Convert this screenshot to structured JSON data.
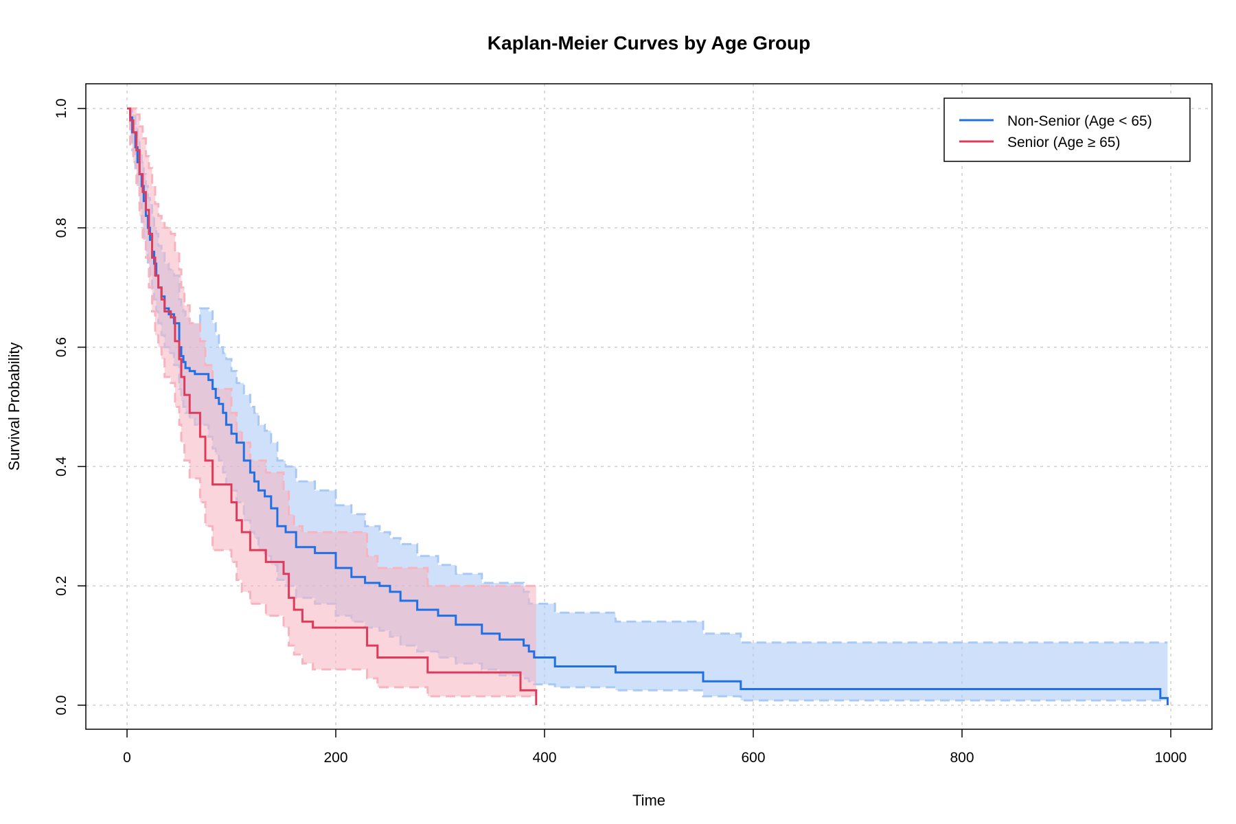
{
  "chart_data": {
    "type": "line",
    "title": "Kaplan-Meier Curves by Age Group",
    "xlabel": "Time",
    "ylabel": "Survival Probability",
    "xlim": [
      0,
      1000
    ],
    "ylim": [
      0,
      1
    ],
    "x_ticks": [
      "0",
      "200",
      "400",
      "600",
      "800",
      "1000"
    ],
    "y_ticks": [
      "0.0",
      "0.2",
      "0.4",
      "0.6",
      "0.8",
      "1.0"
    ],
    "grid": true,
    "legend_position": "top-right",
    "series": [
      {
        "name": "Non-Senior (Age < 65)",
        "color": "#1f6fe5",
        "band_color": "#a8c9f5",
        "x": [
          0,
          3,
          5,
          8,
          10,
          12,
          14,
          16,
          18,
          20,
          22,
          24,
          26,
          28,
          30,
          33,
          36,
          40,
          45,
          50,
          52,
          54,
          56,
          60,
          65,
          70,
          78,
          82,
          85,
          88,
          92,
          95,
          100,
          105,
          112,
          118,
          122,
          126,
          132,
          138,
          144,
          152,
          162,
          180,
          200,
          215,
          228,
          242,
          252,
          262,
          278,
          298,
          315,
          340,
          357,
          380,
          385,
          390,
          410,
          468,
          552,
          588,
          990,
          997
        ],
        "y": [
          1.0,
          0.985,
          0.96,
          0.935,
          0.91,
          0.89,
          0.87,
          0.845,
          0.82,
          0.8,
          0.78,
          0.76,
          0.74,
          0.72,
          0.7,
          0.685,
          0.665,
          0.655,
          0.64,
          0.6,
          0.585,
          0.575,
          0.565,
          0.56,
          0.555,
          0.555,
          0.545,
          0.53,
          0.515,
          0.505,
          0.49,
          0.47,
          0.455,
          0.44,
          0.41,
          0.39,
          0.375,
          0.36,
          0.35,
          0.33,
          0.3,
          0.29,
          0.265,
          0.255,
          0.23,
          0.215,
          0.205,
          0.2,
          0.19,
          0.175,
          0.16,
          0.15,
          0.135,
          0.12,
          0.11,
          0.1,
          0.09,
          0.08,
          0.065,
          0.055,
          0.04,
          0.027,
          0.012,
          0.0
        ],
        "lower": [
          1.0,
          0.96,
          0.93,
          0.9,
          0.87,
          0.84,
          0.81,
          0.78,
          0.76,
          0.74,
          0.72,
          0.7,
          0.68,
          0.66,
          0.64,
          0.62,
          0.6,
          0.59,
          0.57,
          0.53,
          0.51,
          0.5,
          0.49,
          0.48,
          0.47,
          0.47,
          0.45,
          0.43,
          0.42,
          0.41,
          0.39,
          0.37,
          0.36,
          0.34,
          0.31,
          0.29,
          0.28,
          0.26,
          0.25,
          0.235,
          0.21,
          0.2,
          0.18,
          0.17,
          0.15,
          0.14,
          0.13,
          0.125,
          0.115,
          0.1,
          0.09,
          0.08,
          0.07,
          0.06,
          0.05,
          0.045,
          0.04,
          0.035,
          0.03,
          0.025,
          0.015,
          0.008,
          0.008,
          0.008
        ],
        "upper": [
          1.0,
          1.0,
          0.99,
          0.97,
          0.95,
          0.93,
          0.91,
          0.89,
          0.87,
          0.85,
          0.84,
          0.82,
          0.8,
          0.79,
          0.77,
          0.76,
          0.74,
          0.73,
          0.72,
          0.68,
          0.67,
          0.66,
          0.65,
          0.64,
          0.64,
          0.665,
          0.66,
          0.64,
          0.62,
          0.6,
          0.59,
          0.58,
          0.56,
          0.54,
          0.52,
          0.5,
          0.49,
          0.47,
          0.46,
          0.44,
          0.41,
          0.4,
          0.375,
          0.36,
          0.335,
          0.32,
          0.3,
          0.29,
          0.28,
          0.27,
          0.25,
          0.235,
          0.22,
          0.205,
          0.205,
          0.19,
          0.17,
          0.17,
          0.155,
          0.14,
          0.12,
          0.105,
          0.105,
          0.105
        ]
      },
      {
        "name": "Senior (Age ≥ 65)",
        "color": "#e03a5a",
        "band_color": "#f8b3bf",
        "x": [
          0,
          3,
          6,
          9,
          12,
          15,
          18,
          21,
          24,
          27,
          30,
          33,
          36,
          42,
          46,
          50,
          52,
          55,
          60,
          70,
          75,
          82,
          100,
          105,
          110,
          118,
          133,
          150,
          155,
          160,
          168,
          178,
          230,
          240,
          288,
          377,
          392
        ],
        "y": [
          1.0,
          0.98,
          0.96,
          0.93,
          0.89,
          0.86,
          0.83,
          0.79,
          0.75,
          0.72,
          0.7,
          0.68,
          0.66,
          0.65,
          0.61,
          0.58,
          0.55,
          0.52,
          0.49,
          0.45,
          0.41,
          0.37,
          0.34,
          0.31,
          0.29,
          0.26,
          0.24,
          0.22,
          0.18,
          0.16,
          0.14,
          0.13,
          0.1,
          0.08,
          0.055,
          0.025,
          0.0
        ],
        "lower": [
          1.0,
          0.94,
          0.91,
          0.87,
          0.82,
          0.78,
          0.75,
          0.7,
          0.66,
          0.62,
          0.6,
          0.58,
          0.55,
          0.54,
          0.5,
          0.47,
          0.44,
          0.41,
          0.38,
          0.34,
          0.3,
          0.26,
          0.24,
          0.21,
          0.19,
          0.17,
          0.15,
          0.13,
          0.1,
          0.085,
          0.07,
          0.06,
          0.045,
          0.03,
          0.015,
          0.015,
          0.015
        ],
        "upper": [
          1.0,
          1.0,
          1.0,
          0.99,
          0.97,
          0.95,
          0.92,
          0.9,
          0.87,
          0.84,
          0.82,
          0.81,
          0.8,
          0.79,
          0.76,
          0.73,
          0.7,
          0.67,
          0.64,
          0.61,
          0.57,
          0.53,
          0.49,
          0.46,
          0.44,
          0.41,
          0.39,
          0.36,
          0.32,
          0.3,
          0.29,
          0.29,
          0.25,
          0.23,
          0.2,
          0.2,
          0.2
        ]
      }
    ]
  }
}
